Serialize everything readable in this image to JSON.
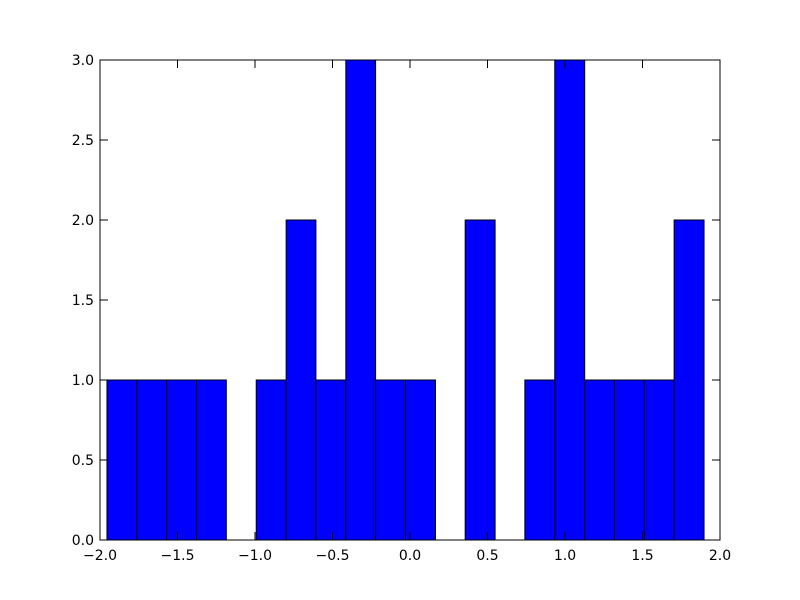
{
  "chart_data": {
    "type": "histogram",
    "bins": [
      -1.955,
      -1.762,
      -1.57,
      -1.377,
      -1.185,
      -0.992,
      -0.799,
      -0.607,
      -0.414,
      -0.222,
      -0.029,
      0.164,
      0.356,
      0.549,
      0.741,
      0.934,
      1.127,
      1.319,
      1.512,
      1.704,
      1.897
    ],
    "counts": [
      1,
      1,
      1,
      1,
      0,
      1,
      2,
      1,
      3,
      1,
      1,
      0,
      2,
      0,
      1,
      3,
      1,
      1,
      1,
      2
    ],
    "color": "#0000ff",
    "xlim": [
      -2,
      2
    ],
    "ylim": [
      0,
      3
    ],
    "xticks": [
      {
        "value": -2,
        "label": "−2.0"
      },
      {
        "value": -1.5,
        "label": "−1.5"
      },
      {
        "value": -1,
        "label": "−1.0"
      },
      {
        "value": -0.5,
        "label": "−0.5"
      },
      {
        "value": 0,
        "label": "0.0"
      },
      {
        "value": 0.5,
        "label": "0.5"
      },
      {
        "value": 1,
        "label": "1.0"
      },
      {
        "value": 1.5,
        "label": "1.5"
      },
      {
        "value": 2,
        "label": "2.0"
      }
    ],
    "yticks": [
      {
        "value": 0,
        "label": "0.0"
      },
      {
        "value": 0.5,
        "label": "0.5"
      },
      {
        "value": 1,
        "label": "1.0"
      },
      {
        "value": 1.5,
        "label": "1.5"
      },
      {
        "value": 2,
        "label": "2.0"
      },
      {
        "value": 2.5,
        "label": "2.5"
      },
      {
        "value": 3,
        "label": "3.0"
      }
    ],
    "grid": false
  }
}
